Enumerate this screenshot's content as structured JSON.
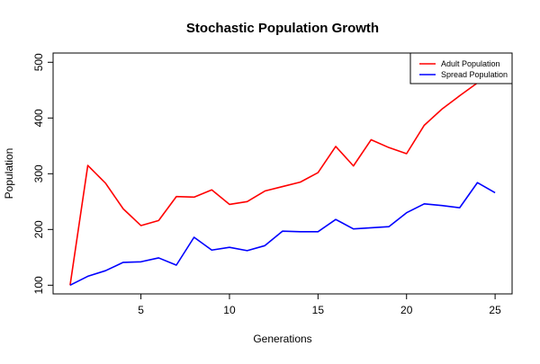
{
  "chart_data": {
    "type": "line",
    "title": "Stochastic Population Growth",
    "xlabel": "Generations",
    "ylabel": "Population",
    "xlim": [
      0.04,
      25.96
    ],
    "ylim": [
      84.4,
      516.6
    ],
    "xticks": [
      5,
      10,
      15,
      20,
      25
    ],
    "yticks": [
      100,
      200,
      300,
      400,
      500
    ],
    "grid": false,
    "legend_position": "top-right",
    "x": [
      1,
      2,
      3,
      4,
      5,
      6,
      7,
      8,
      9,
      10,
      11,
      12,
      13,
      14,
      15,
      16,
      17,
      18,
      19,
      20,
      21,
      22,
      23,
      24,
      25
    ],
    "series": [
      {
        "name": "Adult Population",
        "color": "#ff0000",
        "values": [
          100,
          315,
          283,
          237,
          207,
          216,
          259,
          258,
          271,
          245,
          250,
          269,
          277,
          285,
          302,
          349,
          314,
          361,
          347,
          336,
          387,
          416,
          440,
          463,
          501
        ]
      },
      {
        "name": "Spread Population",
        "color": "#0000ff",
        "values": [
          100,
          116,
          126,
          141,
          142,
          149,
          136,
          186,
          163,
          168,
          162,
          171,
          197,
          196,
          196,
          218,
          201,
          203,
          205,
          230,
          246,
          243,
          239,
          284,
          266
        ]
      }
    ]
  }
}
